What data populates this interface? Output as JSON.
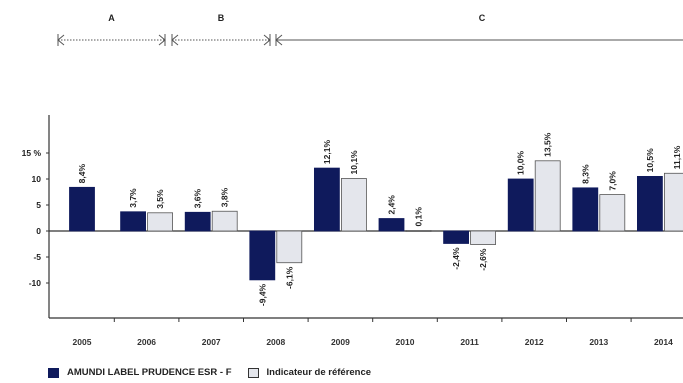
{
  "chart_data": {
    "type": "bar",
    "categories": [
      "2005",
      "2006",
      "2007",
      "2008",
      "2009",
      "2010",
      "2011",
      "2012",
      "2013",
      "2014"
    ],
    "series": [
      {
        "name": "AMUNDI LABEL PRUDENCE ESR - F",
        "values": [
          8.4,
          3.7,
          3.6,
          -9.4,
          12.1,
          2.4,
          -2.4,
          10.0,
          8.3,
          10.5
        ],
        "labels": [
          "8,4%",
          "3,7%",
          "3,6%",
          "-9,4%",
          "12,1%",
          "2,4%",
          "-2,4%",
          "10,0%",
          "8,3%",
          "10,5%"
        ]
      },
      {
        "name": "Indicateur de référence",
        "values": [
          null,
          3.5,
          3.8,
          -6.1,
          10.1,
          0.1,
          -2.6,
          13.5,
          7.0,
          11.1
        ],
        "labels": [
          "",
          "3,5%",
          "3,8%",
          "-6,1%",
          "10,1%",
          "0,1%",
          "-2,6%",
          "13,5%",
          "7,0%",
          "11,1%"
        ]
      }
    ],
    "yticks": [
      {
        "value": 15,
        "label": "15 %"
      },
      {
        "value": 10,
        "label": "10"
      },
      {
        "value": 5,
        "label": "5"
      },
      {
        "value": 0,
        "label": "0"
      },
      {
        "value": -5,
        "label": "-5"
      },
      {
        "value": -10,
        "label": "-10"
      }
    ],
    "ylim": [
      -17,
      22
    ],
    "legend_position": "bottom-left",
    "colors": {
      "series1": "#0f1a5c",
      "series2": "#e4e6ec",
      "axis": "#333333",
      "period_line": "#555555"
    },
    "periods": [
      {
        "label": "A",
        "from": "2005",
        "to": "2006"
      },
      {
        "label": "B",
        "from": "2006",
        "to": "2008"
      },
      {
        "label": "C",
        "from": "2008",
        "to": "2014"
      }
    ]
  }
}
